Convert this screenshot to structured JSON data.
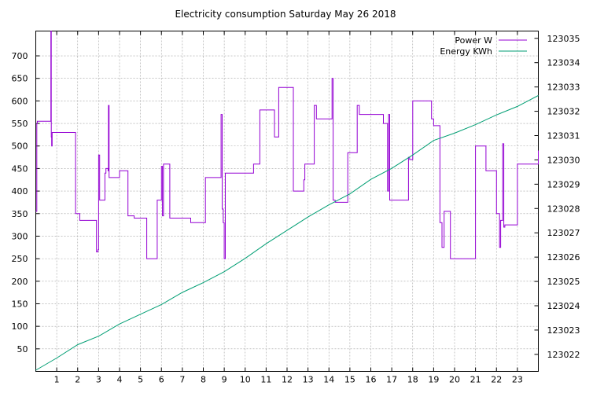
{
  "chart_data": {
    "type": "line",
    "title": "Electricity consumption Saturday May 26 2018",
    "xlabel": "",
    "ylabel": "",
    "y2label": "",
    "xlim": [
      0,
      24
    ],
    "ylim": [
      0,
      755
    ],
    "y2lim": [
      123021.3,
      123035.3
    ],
    "x_ticks": [
      1,
      2,
      3,
      4,
      5,
      6,
      7,
      8,
      9,
      10,
      11,
      12,
      13,
      14,
      15,
      16,
      17,
      18,
      19,
      20,
      21,
      22,
      23
    ],
    "y_ticks": [
      50,
      100,
      150,
      200,
      250,
      300,
      350,
      400,
      450,
      500,
      550,
      600,
      650,
      700
    ],
    "y2_ticks": [
      123022,
      123023,
      123024,
      123025,
      123026,
      123027,
      123028,
      123029,
      123030,
      123031,
      123032,
      123033,
      123034,
      123035
    ],
    "grid": true,
    "legend_position": "top-right",
    "series": [
      {
        "name": "Power W",
        "color": "#9400d3",
        "axis": "left",
        "step": true,
        "x": [
          0,
          0.05,
          0.07,
          0.1,
          0.7,
          0.72,
          0.74,
          0.76,
          0.78,
          0.8,
          1.45,
          1.9,
          2.1,
          2.9,
          2.95,
          2.97,
          3.0,
          3.05,
          3.3,
          3.35,
          3.45,
          3.47,
          3.5,
          4.0,
          4.4,
          4.7,
          5.0,
          5.3,
          5.8,
          5.95,
          6.0,
          6.05,
          6.1,
          6.15,
          6.4,
          6.8,
          7.4,
          8.1,
          8.8,
          8.85,
          8.9,
          8.95,
          9.0,
          9.05,
          9.1,
          9.9,
          10.4,
          10.7,
          11.3,
          11.4,
          11.5,
          11.6,
          12.3,
          12.8,
          12.85,
          13.3,
          13.4,
          14.1,
          14.15,
          14.2,
          14.3,
          14.6,
          14.9,
          15.3,
          15.35,
          15.45,
          15.5,
          16.4,
          16.6,
          16.8,
          16.85,
          16.9,
          17.5,
          17.8,
          17.85,
          18.0,
          18.6,
          18.9,
          19.0,
          19.3,
          19.4,
          19.5,
          19.8,
          20.3,
          21.0,
          21.1,
          21.5,
          21.6,
          22.0,
          22.1,
          22.15,
          22.2,
          22.3,
          22.35,
          22.4,
          22.5,
          22.8,
          23.0,
          23.8,
          24.0
        ],
        "values": [
          355,
          550,
          555,
          555,
          555,
          755,
          520,
          500,
          530,
          530,
          530,
          350,
          335,
          265,
          265,
          270,
          480,
          380,
          440,
          450,
          445,
          590,
          430,
          445,
          345,
          340,
          340,
          250,
          380,
          380,
          455,
          345,
          460,
          460,
          340,
          340,
          330,
          430,
          430,
          570,
          360,
          330,
          250,
          440,
          440,
          440,
          460,
          580,
          580,
          520,
          520,
          630,
          400,
          425,
          460,
          590,
          560,
          560,
          650,
          380,
          375,
          375,
          485,
          485,
          590,
          570,
          570,
          570,
          550,
          400,
          570,
          380,
          380,
          475,
          470,
          600,
          600,
          560,
          545,
          330,
          275,
          355,
          250,
          250,
          500,
          500,
          445,
          445,
          350,
          350,
          275,
          335,
          505,
          320,
          325,
          325,
          325,
          460,
          460,
          490
        ]
      },
      {
        "name": "Energy KWh",
        "color": "#009e73",
        "axis": "right",
        "step": false,
        "x": [
          0,
          1,
          2,
          3,
          4,
          5,
          6,
          7,
          8,
          9,
          10,
          11,
          12,
          13,
          14,
          15,
          16,
          17,
          18,
          19,
          20,
          21,
          22,
          23,
          24
        ],
        "values": [
          123021.35,
          123021.85,
          123022.4,
          123022.75,
          123023.25,
          123023.65,
          123024.05,
          123024.55,
          123024.95,
          123025.4,
          123025.95,
          123026.55,
          123027.1,
          123027.65,
          123028.15,
          123028.6,
          123029.2,
          123029.65,
          123030.2,
          123030.8,
          123031.1,
          123031.45,
          123031.85,
          123032.2,
          123032.65
        ]
      }
    ]
  }
}
